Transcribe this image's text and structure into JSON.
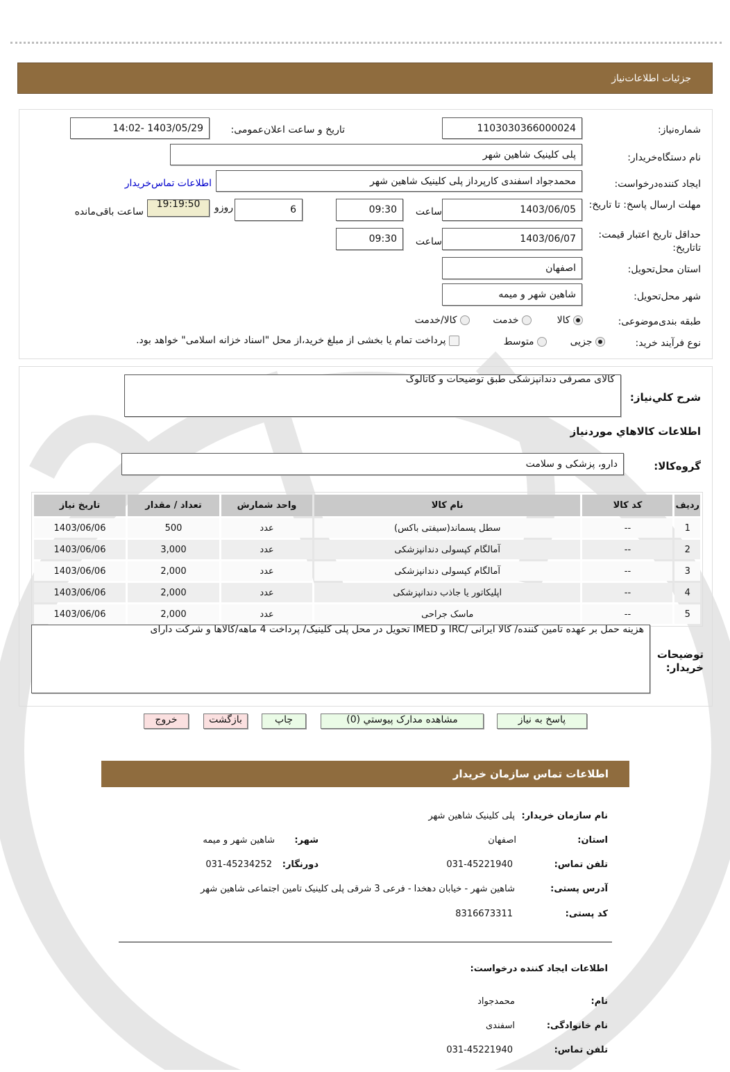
{
  "header": {
    "title": "جزئیات اطلاعات‌نیاز"
  },
  "form": {
    "need_number_label": "شماره‌نیاز:",
    "need_number": "1103030366000024",
    "announce_label": "تاریخ و ساعت اعلان‌عمومی:",
    "announce_value": "1403/05/29 -14:02",
    "buyer_label": "نام دستگاه‌خریدار:",
    "buyer_value": "پلی کلینیک شاهین شهر",
    "creator_label": "ایجاد کننده‌درخواست:",
    "creator_value": "محمدجواد اسفندی کارپرداز پلی کلینیک شاهین شهر",
    "contact_link": "اطلاعات تماس‌خریدار",
    "deadline_label": "مهلت ارسال پاسخ: تا تاریخ:",
    "deadline_date": "1403/06/05",
    "time_label": "ساعت",
    "deadline_time": "09:30",
    "days_value": "6",
    "days_label": "روزو",
    "timer": "19:19:50",
    "remaining_label": "ساعت باقی‌مانده",
    "validity_label": "حداقل تاریخ اعتبار قیمت: تاتاریخ:",
    "validity_date": "1403/06/07",
    "validity_time": "09:30",
    "province_label": "استان محل‌تحویل:",
    "province_value": "اصفهان",
    "city_label": "شهر محل‌تحویل:",
    "city_value": "شاهین شهر و میمه",
    "category_label": "طبقه بندی‌موضوعی:",
    "category_options": [
      "کالا",
      "خدمت",
      "کالا/خدمت"
    ],
    "category_selected": "کالا",
    "process_label": "نوع فرآیند خرید:",
    "process_options": [
      "جزیی",
      "متوسط"
    ],
    "process_selected": "جزیی",
    "payment_note": "پرداخت تمام یا بخشی از مبلغ خرید،از محل \"اسناد خزانه اسلامی\" خواهد بود.",
    "payment_checked": false
  },
  "details": {
    "summary_label": "شرح کلي‌نیاز:",
    "summary_value": "کالای مصرفی دندانپزشکی طبق توضیحات و کاتالوگ",
    "goods_heading": "اطلاعات کالاهاي موردنیاز",
    "group_label": "گروه‌کالا:",
    "group_value": "دارو، پزشکی و سلامت",
    "table": {
      "headers": [
        "ردیف",
        "کد کالا",
        "نام کالا",
        "واحد شمارش",
        "تعداد / مقدار",
        "تاریخ نیاز"
      ],
      "rows": [
        [
          "1",
          "--",
          "سطل پسماند(سیفتی باکس)",
          "عدد",
          "500",
          "1403/06/06"
        ],
        [
          "2",
          "--",
          "آمالگام کپسولی دندانپزشکی",
          "عدد",
          "3,000",
          "1403/06/06"
        ],
        [
          "3",
          "--",
          "آمالگام کپسولی دندانپزشکی",
          "عدد",
          "2,000",
          "1403/06/06"
        ],
        [
          "4",
          "--",
          "اپلیکاتور یا جاذب دندانپزشکی",
          "عدد",
          "2,000",
          "1403/06/06"
        ],
        [
          "5",
          "--",
          "ماسک جراحی",
          "عدد",
          "2,000",
          "1403/06/06"
        ]
      ]
    },
    "notes_label": "توضیحات خریدار:",
    "notes_value": "هزینه حمل بر عهده تامین کننده/ کالا ایرانی /IRC و IMED تحویل در محل پلی کلینیک/ پرداخت 4 ماهه/کالاها و شرکت دارای"
  },
  "buttons": {
    "reply": "پاسخ به نیاز",
    "attachments": "مشاهده مدارک پیوستي (0)",
    "print": "چاپ",
    "back": "بازگشت",
    "exit": "خروج"
  },
  "contact": {
    "title": "اطلاعات تماس سازمان خریدار",
    "org_label": "نام سازمان خریدار:",
    "org_value": "پلی کلینیک شاهین شهر",
    "province_label": "استان:",
    "province_value": "اصفهان",
    "city_label": "شهر:",
    "city_value": "شاهین شهر و میمه",
    "phone_label": "تلفن تماس:",
    "phone_value": "031-45221940",
    "fax_label": "دورنگار:",
    "fax_value": "031-45234252",
    "address_label": "آدرس پستی:",
    "address_value": "شاهین شهر - خیابان دهخدا - فرعی 3 شرقی پلی کلینیک تامین اجتماعی شاهین شهر",
    "postal_label": "کد پستی:",
    "postal_value": "8316673311",
    "creator_title": "اطلاعات ایجاد کننده درخواست:",
    "name_label": "نام:",
    "name_value": "محمدجواد",
    "family_label": "نام خانوادگی:",
    "family_value": "اسفندی",
    "creator_phone_label": "تلفن تماس:",
    "creator_phone_value": "031-45221940"
  },
  "colors": {
    "header_bg": "#8f6c3e",
    "timer_bg": "#f0edcd",
    "link": "#0000cc",
    "green_button": "#eafbe6",
    "pink_button": "#fbe0e0"
  }
}
